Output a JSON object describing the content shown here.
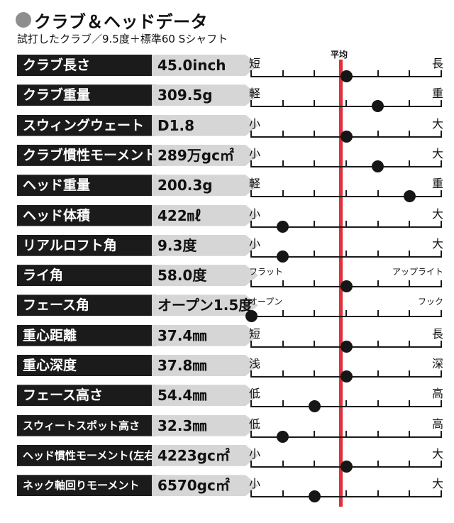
{
  "title": "クラブ＆ヘッドデータ",
  "subtitle": "試打したクラブ／9.5度＋標準60  Sシャフト",
  "average_label": "平均",
  "rows": [
    {
      "label": "クラブ長さ",
      "value": "45.0inch",
      "left": "短",
      "right": "長",
      "level": 0.5
    },
    {
      "label": "クラブ重量",
      "value": "309.5g",
      "left": "軽",
      "right": "重",
      "level": 0.666
    },
    {
      "label": "スウィングウェート",
      "value": "D1.8",
      "left": "小",
      "right": "大",
      "level": 0.5
    },
    {
      "label": "クラブ慣性モーメント",
      "value": "289万gc㎡",
      "left": "小",
      "right": "大",
      "level": 0.666
    },
    {
      "label": "ヘッド重量",
      "value": "200.3g",
      "left": "軽",
      "right": "重",
      "level": 0.833
    },
    {
      "label": "ヘッド体積",
      "value": "422㎖",
      "left": "小",
      "right": "大",
      "level": 0.166
    },
    {
      "label": "リアルロフト角",
      "value": "9.3度",
      "left": "小",
      "right": "大",
      "level": 0.166
    },
    {
      "label": "ライ角",
      "value": "58.0度",
      "left": "フラット",
      "right": "アップライト",
      "level": 0.5
    },
    {
      "label": "フェース角",
      "value": "オープン1.5度",
      "left": "オープン",
      "right": "フック",
      "level": 0.0
    },
    {
      "label": "重心距離",
      "value": "37.4㎜",
      "left": "短",
      "right": "長",
      "level": 0.5
    },
    {
      "label": "重心深度",
      "value": "37.8㎜",
      "left": "浅",
      "right": "深",
      "level": 0.5
    },
    {
      "label": "フェース高さ",
      "value": "54.4㎜",
      "left": "低",
      "right": "高",
      "level": 0.333
    },
    {
      "label": "スウィートスポット高さ",
      "value": "32.3㎜",
      "left": "低",
      "right": "高",
      "level": 0.166
    },
    {
      "label": "ヘッド慣性モーメント(左右方向)",
      "value": "4223gc㎡",
      "left": "小",
      "right": "大",
      "level": 0.5
    },
    {
      "label": "ネック軸回りモーメント",
      "value": "6570gc㎡",
      "left": "小",
      "right": "大",
      "level": 0.333
    }
  ]
}
